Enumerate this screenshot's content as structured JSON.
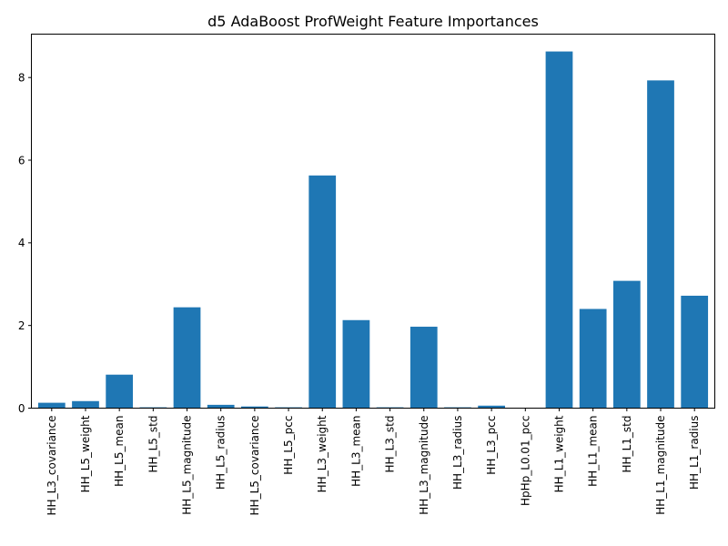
{
  "chart_data": {
    "type": "bar",
    "title": "d5 AdaBoost ProfWeight Feature Importances",
    "xlabel": "",
    "ylabel": "",
    "categories": [
      "HH_L3_covariance",
      "HH_L5_weight",
      "HH_L5_mean",
      "HH_L5_std",
      "HH_L5_magnitude",
      "HH_L5_radius",
      "HH_L5_covariance",
      "HH_L5_pcc",
      "HH_L3_weight",
      "HH_L3_mean",
      "HH_L3_std",
      "HH_L3_magnitude",
      "HH_L3_radius",
      "HH_L3_pcc",
      "HpHp_L0.01_pcc",
      "HH_L1_weight",
      "HH_L1_mean",
      "HH_L1_std",
      "HH_L1_magnitude",
      "HH_L1_radius"
    ],
    "values": [
      0.13,
      0.17,
      0.81,
      0.02,
      2.44,
      0.08,
      0.04,
      0.02,
      5.63,
      2.13,
      0.02,
      1.97,
      0.02,
      0.06,
      0.0,
      8.63,
      2.4,
      3.08,
      7.93,
      2.72
    ],
    "ylim": [
      0,
      9.05
    ],
    "yticks": [
      0,
      2,
      4,
      6,
      8
    ],
    "bar_color": "#1f77b4",
    "grid": false,
    "legend": "none"
  }
}
